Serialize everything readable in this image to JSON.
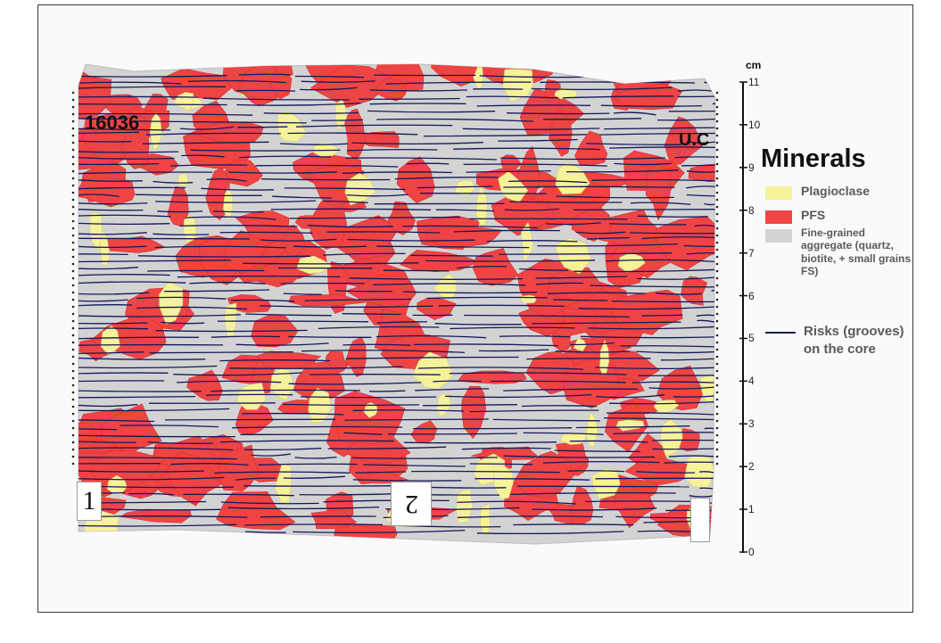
{
  "legend": {
    "title": "Minerals",
    "items": [
      {
        "label": "Plagioclase",
        "color": "#f5f29a"
      },
      {
        "label": "PFS",
        "color": "#ee4444"
      },
      {
        "label": "Fine-grained aggregate (quartz, biotite, + small grains FS)",
        "color": "#d3d3d3"
      }
    ],
    "line_item": {
      "label": "Risks (grooves) on the core",
      "color": "#14195a"
    }
  },
  "core": {
    "sample_id": "16036",
    "orientation_mark": "U.C",
    "section_labels": [
      "1",
      "2"
    ]
  },
  "scale": {
    "unit": "cm",
    "ticks": [
      "0",
      "1",
      "2",
      "3",
      "4",
      "5",
      "6",
      "7",
      "8",
      "9",
      "10",
      "11"
    ]
  }
}
